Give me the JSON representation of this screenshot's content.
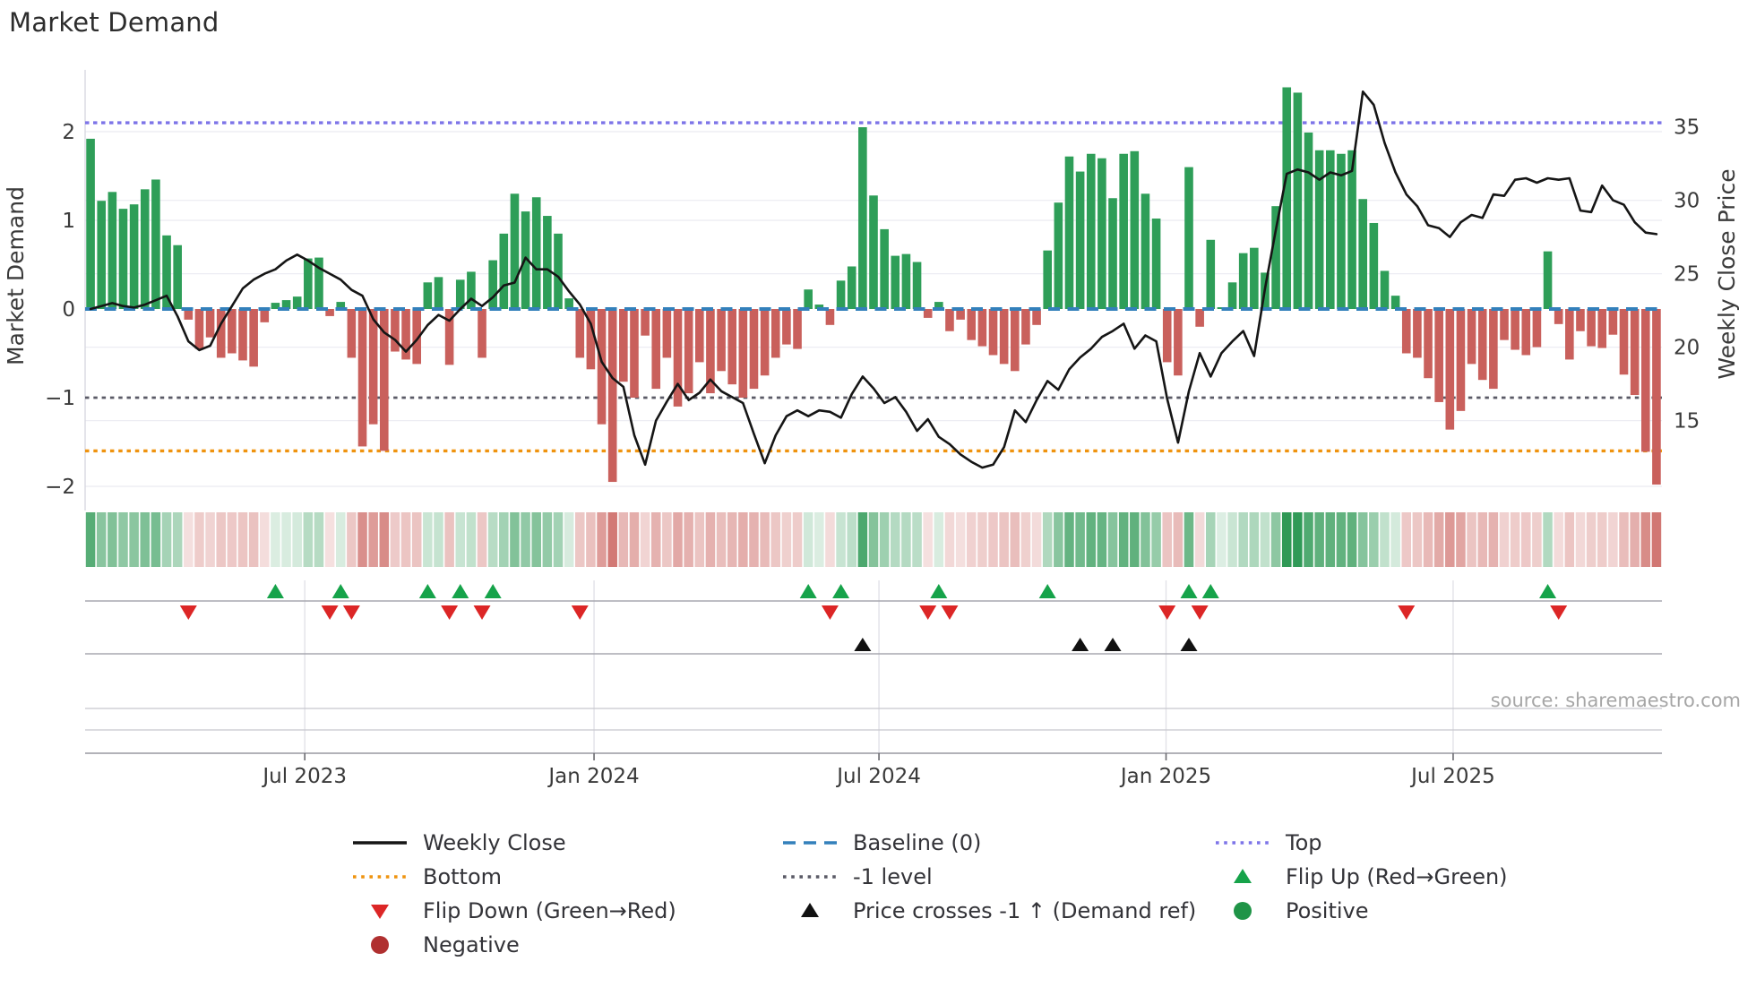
{
  "title": "Market Demand",
  "source_note": "source: sharemaestro.com",
  "axes": {
    "left_label": "Market Demand",
    "left_ticks": [
      2,
      1,
      0,
      -1,
      -2
    ],
    "right_label": "Weekly Close Price",
    "right_ticks": [
      35,
      30,
      25,
      20,
      15
    ],
    "x_ticks": [
      {
        "label": "Jul 2023",
        "week": 20.2
      },
      {
        "label": "Jan 2024",
        "week": 46.8
      },
      {
        "label": "Jul 2024",
        "week": 73.0
      },
      {
        "label": "Jan 2025",
        "week": 99.4
      },
      {
        "label": "Jul 2025",
        "week": 125.8
      }
    ]
  },
  "reference_lines": {
    "top": {
      "label": "Top",
      "value": 2.1
    },
    "baseline": {
      "label": "Baseline (0)",
      "value": 0
    },
    "minus1": {
      "label": "-1 level",
      "value": -1
    },
    "bottom": {
      "label": "Bottom",
      "value": -1.6
    }
  },
  "chart_data": {
    "type": "bar+line",
    "weeks": 145,
    "x_start_label": "Feb 2023",
    "x_end_label": "Nov 2025",
    "ylim_left": [
      -2.27,
      2.7
    ],
    "ylim_right": [
      8.9,
      38.9
    ],
    "series": [
      {
        "name": "Market Demand",
        "type": "bar",
        "values": [
          1.92,
          1.22,
          1.32,
          1.13,
          1.18,
          1.35,
          1.46,
          0.83,
          0.72,
          -0.12,
          -0.45,
          -0.32,
          -0.55,
          -0.5,
          -0.58,
          -0.65,
          -0.15,
          0.07,
          0.1,
          0.14,
          0.57,
          0.58,
          -0.08,
          0.08,
          -0.55,
          -1.55,
          -1.3,
          -1.6,
          -0.48,
          -0.57,
          -0.62,
          0.3,
          0.36,
          -0.63,
          0.33,
          0.42,
          -0.55,
          0.55,
          0.85,
          1.3,
          1.1,
          1.26,
          1.05,
          0.85,
          0.12,
          -0.55,
          -0.68,
          -1.3,
          -1.95,
          -0.82,
          -1.0,
          -0.3,
          -0.9,
          -0.55,
          -1.1,
          -0.95,
          -0.6,
          -0.95,
          -0.7,
          -0.85,
          -1.0,
          -0.9,
          -0.75,
          -0.55,
          -0.4,
          -0.45,
          0.22,
          0.05,
          -0.18,
          0.32,
          0.48,
          2.05,
          1.28,
          0.9,
          0.6,
          0.62,
          0.53,
          -0.1,
          0.08,
          -0.25,
          -0.12,
          -0.35,
          -0.42,
          -0.52,
          -0.62,
          -0.7,
          -0.4,
          -0.18,
          0.66,
          1.2,
          1.72,
          1.55,
          1.75,
          1.7,
          1.25,
          1.75,
          1.78,
          1.3,
          1.02,
          -0.6,
          -0.75,
          1.6,
          -0.2,
          0.78,
          0.02,
          0.3,
          0.63,
          0.69,
          0.41,
          1.16,
          2.5,
          2.44,
          1.99,
          1.79,
          1.79,
          1.75,
          1.79,
          1.24,
          0.97,
          0.43,
          0.15,
          -0.5,
          -0.55,
          -0.78,
          -1.05,
          -1.36,
          -1.15,
          -0.62,
          -0.8,
          -0.9,
          -0.35,
          -0.46,
          -0.52,
          -0.43,
          0.65,
          -0.17,
          -0.57,
          -0.25,
          -0.42,
          -0.44,
          -0.29,
          -0.74,
          -0.97,
          -1.61,
          -1.98
        ]
      },
      {
        "name": "Weekly Close",
        "type": "line",
        "values": [
          22.6,
          22.8,
          23.0,
          22.8,
          22.7,
          22.9,
          23.2,
          23.5,
          22.1,
          20.4,
          19.8,
          20.1,
          21.6,
          22.8,
          24.0,
          24.6,
          25.0,
          25.3,
          25.9,
          26.3,
          25.9,
          25.4,
          25.0,
          24.6,
          23.9,
          23.5,
          21.9,
          21.0,
          20.5,
          19.7,
          20.5,
          21.5,
          22.2,
          21.8,
          22.6,
          23.3,
          22.8,
          23.4,
          24.2,
          24.4,
          26.1,
          25.3,
          25.3,
          24.8,
          23.8,
          22.9,
          21.6,
          19.0,
          17.9,
          17.3,
          14.0,
          12.0,
          15.0,
          16.3,
          17.5,
          16.4,
          16.9,
          17.8,
          17.0,
          16.6,
          16.2,
          14.1,
          12.1,
          14.0,
          15.3,
          15.7,
          15.3,
          15.7,
          15.6,
          15.2,
          16.8,
          18.0,
          17.2,
          16.2,
          16.6,
          15.6,
          14.3,
          15.1,
          13.9,
          13.4,
          12.7,
          12.2,
          11.8,
          12.0,
          13.2,
          15.7,
          14.9,
          16.4,
          17.7,
          17.1,
          18.5,
          19.3,
          19.9,
          20.7,
          21.1,
          21.6,
          19.9,
          20.8,
          20.4,
          16.5,
          13.5,
          17.0,
          19.6,
          18.0,
          19.6,
          20.4,
          21.1,
          19.4,
          24.0,
          28.0,
          31.8,
          32.1,
          31.9,
          31.4,
          31.9,
          31.7,
          32.0,
          37.4,
          36.5,
          33.9,
          31.9,
          30.4,
          29.6,
          28.3,
          28.1,
          27.5,
          28.5,
          29.0,
          28.8,
          30.4,
          30.3,
          31.4,
          31.5,
          31.2,
          31.5,
          31.4,
          31.5,
          29.3,
          29.2,
          31.0,
          30.0,
          29.7,
          28.5,
          27.8,
          27.7
        ]
      }
    ],
    "markers": {
      "flip_up_weeks": [
        17,
        23,
        31,
        34,
        37,
        66,
        69,
        78,
        88,
        101,
        103,
        134
      ],
      "flip_down_weeks": [
        9,
        22,
        24,
        33,
        36,
        45,
        68,
        77,
        79,
        99,
        102,
        121,
        135
      ],
      "price_cross_weeks": [
        71,
        91,
        94,
        101
      ]
    }
  },
  "colors": {
    "bar_positive": "#2e9e58",
    "bar_negative": "#c9605c",
    "price_line": "#151515",
    "baseline": "#3380bb",
    "top_line": "#7d74e8",
    "bottom_line": "#ef930f",
    "minus1_line": "#5a5a66",
    "flip_up": "#16a34a",
    "flip_down": "#dc2626",
    "price_cross": "#111111",
    "positive_dot": "#1f9447",
    "negative_dot": "#b03030",
    "heat_green": "40,150,80",
    "heat_red": "198,85,80",
    "grid": "#ededf3",
    "panel_line": "#a8a8b0",
    "faint_line": "#c7c7cd",
    "axis_text": "#3a3a3a",
    "source_text": "#a6a6a6"
  },
  "legend": {
    "items": [
      {
        "label": "Weekly Close",
        "swatch": "line",
        "color": "#151515",
        "col": 0,
        "row": 0
      },
      {
        "label": "Bottom",
        "swatch": "dotted",
        "color": "#ef930f",
        "col": 0,
        "row": 1
      },
      {
        "label": "Flip Down (Green→Red)",
        "swatch": "tri-down",
        "color": "#dc2626",
        "col": 0,
        "row": 2
      },
      {
        "label": "Negative",
        "swatch": "circle",
        "color": "#b03030",
        "col": 0,
        "row": 3
      },
      {
        "label": "Baseline (0)",
        "swatch": "dashed",
        "color": "#3380bb",
        "col": 1,
        "row": 0
      },
      {
        "label": "-1 level",
        "swatch": "dotted",
        "color": "#5a5a66",
        "col": 1,
        "row": 1
      },
      {
        "label": "Price crosses -1 ↑ (Demand ref)",
        "swatch": "tri-up",
        "color": "#111111",
        "col": 1,
        "row": 2
      },
      {
        "label": "Top",
        "swatch": "dotted",
        "color": "#7d74e8",
        "col": 2,
        "row": 0
      },
      {
        "label": "Flip Up (Red→Green)",
        "swatch": "tri-up",
        "color": "#16a34a",
        "col": 2,
        "row": 1
      },
      {
        "label": "Positive",
        "swatch": "circle",
        "color": "#1f9447",
        "col": 2,
        "row": 2
      }
    ]
  }
}
